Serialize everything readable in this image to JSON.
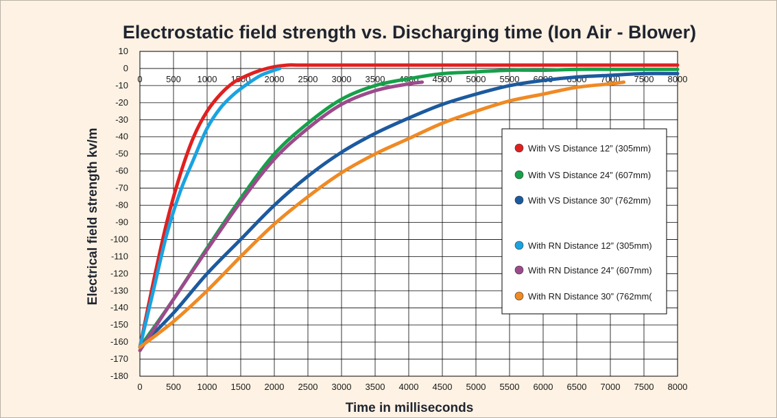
{
  "chart_data": {
    "type": "line",
    "title": "Electrostatic field strength vs. Discharging time (Ion Air - Blower)",
    "xlabel": "Time in milliseconds",
    "ylabel": "Electrical field strength kv/m",
    "xlim": [
      0,
      8000
    ],
    "ylim": [
      -180,
      10
    ],
    "x_ticks": [
      0,
      500,
      1000,
      1500,
      2000,
      2500,
      3000,
      3500,
      4000,
      4500,
      5000,
      5500,
      6000,
      6500,
      7000,
      7500,
      8000
    ],
    "y_ticks": [
      10,
      0,
      -10,
      -20,
      -30,
      -40,
      -50,
      -60,
      -70,
      -80,
      -90,
      -100,
      -110,
      -120,
      -130,
      -140,
      -150,
      -160,
      -170,
      -180
    ],
    "grid": true,
    "legend_position": "right",
    "series": [
      {
        "name": "With VS Distance 12” (305mm)",
        "color": "#e02020",
        "x": [
          0,
          200,
          400,
          600,
          800,
          1000,
          1200,
          1400,
          1600,
          1800,
          2000,
          2200,
          2400,
          3000,
          4000,
          5000,
          6000,
          7000,
          8000
        ],
        "y": [
          -163,
          -125,
          -90,
          -62,
          -40,
          -25,
          -15,
          -8,
          -4,
          -1,
          1,
          2,
          2,
          2,
          2,
          2,
          2,
          2,
          2
        ]
      },
      {
        "name": "With VS Distance 24” (607mm)",
        "color": "#16a04a",
        "x": [
          0,
          500,
          1000,
          1500,
          2000,
          2500,
          3000,
          3500,
          4000,
          4500,
          5000,
          5500,
          6000,
          6500,
          7000,
          7500,
          8000
        ],
        "y": [
          -163,
          -135,
          -105,
          -76,
          -50,
          -32,
          -18,
          -10,
          -6,
          -3,
          -2,
          -1,
          -1,
          -0.5,
          -0.5,
          -0.5,
          -0.5
        ]
      },
      {
        "name": "With VS Distance 30” (762mm)",
        "color": "#1c5a9e",
        "x": [
          0,
          500,
          1000,
          1500,
          2000,
          2500,
          3000,
          3500,
          4000,
          4500,
          5000,
          5500,
          6000,
          6500,
          7000,
          7500,
          8000
        ],
        "y": [
          -163,
          -143,
          -120,
          -100,
          -80,
          -63,
          -49,
          -38,
          -29,
          -21,
          -15,
          -10,
          -7,
          -5,
          -4,
          -3,
          -3
        ]
      },
      {
        "name": "With RN Distance 12” (305mm)",
        "color": "#1aa3e0",
        "x": [
          0,
          200,
          400,
          600,
          800,
          1000,
          1200,
          1400,
          1600,
          1800,
          2000,
          2080
        ],
        "y": [
          -163,
          -130,
          -97,
          -72,
          -53,
          -35,
          -23,
          -15,
          -9,
          -4,
          -1,
          0
        ]
      },
      {
        "name": "With RN Distance 24” (607mm)",
        "color": "#9c4a8c",
        "x": [
          0,
          500,
          1000,
          1500,
          2000,
          2500,
          3000,
          3500,
          4000,
          4200
        ],
        "y": [
          -165,
          -135,
          -106,
          -78,
          -53,
          -35,
          -21,
          -13,
          -9,
          -8
        ]
      },
      {
        "name": "With RN Distance 30” (762mm(",
        "color": "#ef8a24",
        "x": [
          0,
          500,
          1000,
          1500,
          2000,
          2500,
          3000,
          3500,
          4000,
          4500,
          5000,
          5500,
          6000,
          6500,
          7000,
          7200
        ],
        "y": [
          -163,
          -148,
          -130,
          -110,
          -91,
          -75,
          -61,
          -50,
          -41,
          -32,
          -25,
          -19,
          -15,
          -11,
          -9,
          -8
        ]
      }
    ],
    "legend_groups": [
      [
        0,
        1,
        2
      ],
      [
        3,
        4,
        5
      ]
    ]
  }
}
